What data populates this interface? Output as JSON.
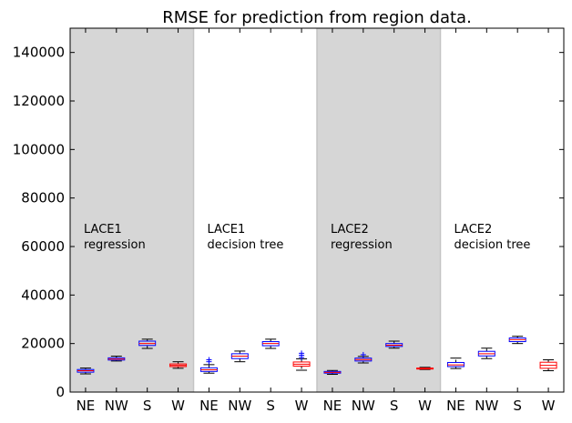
{
  "chart_data": {
    "type": "box",
    "title": "RMSE for prediction from region data.",
    "xlabel": "",
    "ylabel": "",
    "ylim": [
      0,
      150000
    ],
    "yticks": [
      0,
      20000,
      40000,
      60000,
      80000,
      100000,
      120000,
      140000
    ],
    "ytick_labels": [
      "0",
      "20000",
      "40000",
      "60000",
      "80000",
      "100000",
      "120000",
      "140000"
    ],
    "grid": false,
    "legend": "none",
    "categories": [
      "NE",
      "NW",
      "S",
      "W",
      "NE",
      "NW",
      "S",
      "W",
      "NE",
      "NW",
      "S",
      "W",
      "NE",
      "NW",
      "S",
      "W"
    ],
    "group_labels": [
      {
        "lines": [
          "LACE1",
          "regression"
        ],
        "shaded": true
      },
      {
        "lines": [
          "LACE1",
          "decision tree"
        ],
        "shaded": false
      },
      {
        "lines": [
          "LACE2",
          "regression"
        ],
        "shaded": true
      },
      {
        "lines": [
          "LACE2",
          "decision tree"
        ],
        "shaded": false
      }
    ],
    "colors": {
      "shade": "#d6d6d6",
      "box_blue": "#0000ff",
      "box_red": "#ff0000",
      "median": "#ff0000",
      "whisker": "#000000",
      "flier": "#0000ff"
    },
    "boxes": [
      {
        "label": "NE",
        "whislo": 7500,
        "q1": 8200,
        "med": 8800,
        "q3": 9300,
        "whishi": 9900,
        "fliers": [],
        "color": "blue"
      },
      {
        "label": "NW",
        "whislo": 12800,
        "q1": 13200,
        "med": 13600,
        "q3": 14100,
        "whishi": 14800,
        "fliers": [],
        "color": "blue"
      },
      {
        "label": "S",
        "whislo": 18000,
        "q1": 19200,
        "med": 20000,
        "q3": 21000,
        "whishi": 21800,
        "fliers": [],
        "color": "blue"
      },
      {
        "label": "W",
        "whislo": 9800,
        "q1": 10500,
        "med": 11000,
        "q3": 11600,
        "whishi": 12500,
        "fliers": [],
        "color": "red"
      },
      {
        "label": "NE",
        "whislo": 7800,
        "q1": 8500,
        "med": 9200,
        "q3": 10000,
        "whishi": 11300,
        "fliers": [
          12500,
          13300
        ],
        "color": "blue"
      },
      {
        "label": "NW",
        "whislo": 12500,
        "q1": 13800,
        "med": 14800,
        "q3": 15800,
        "whishi": 16900,
        "fliers": [],
        "color": "blue"
      },
      {
        "label": "S",
        "whislo": 18000,
        "q1": 19100,
        "med": 20000,
        "q3": 20800,
        "whishi": 21800,
        "fliers": [],
        "color": "blue"
      },
      {
        "label": "W",
        "whislo": 9000,
        "q1": 10700,
        "med": 11500,
        "q3": 12400,
        "whishi": 13700,
        "fliers": [
          14300,
          15200,
          16000
        ],
        "color": "red"
      },
      {
        "label": "NE",
        "whislo": 7300,
        "q1": 7800,
        "med": 8100,
        "q3": 8500,
        "whishi": 8900,
        "fliers": [],
        "color": "blue"
      },
      {
        "label": "NW",
        "whislo": 12000,
        "q1": 12800,
        "med": 13400,
        "q3": 14000,
        "whishi": 14700,
        "fliers": [
          15400
        ],
        "color": "blue"
      },
      {
        "label": "S",
        "whislo": 18100,
        "q1": 18800,
        "med": 19300,
        "q3": 20000,
        "whishi": 21000,
        "fliers": [],
        "color": "blue"
      },
      {
        "label": "W",
        "whislo": 9300,
        "q1": 9500,
        "med": 9700,
        "q3": 9900,
        "whishi": 10200,
        "fliers": [],
        "color": "red"
      },
      {
        "label": "NE",
        "whislo": 9700,
        "q1": 10500,
        "med": 11200,
        "q3": 12200,
        "whishi": 14000,
        "fliers": [],
        "color": "blue"
      },
      {
        "label": "NW",
        "whislo": 13800,
        "q1": 14900,
        "med": 15800,
        "q3": 16800,
        "whishi": 18100,
        "fliers": [],
        "color": "blue"
      },
      {
        "label": "S",
        "whislo": 20000,
        "q1": 20800,
        "med": 21600,
        "q3": 22300,
        "whishi": 23000,
        "fliers": [],
        "color": "blue"
      },
      {
        "label": "W",
        "whislo": 8800,
        "q1": 9800,
        "med": 11000,
        "q3": 12300,
        "whishi": 13300,
        "fliers": [],
        "color": "red"
      }
    ]
  }
}
